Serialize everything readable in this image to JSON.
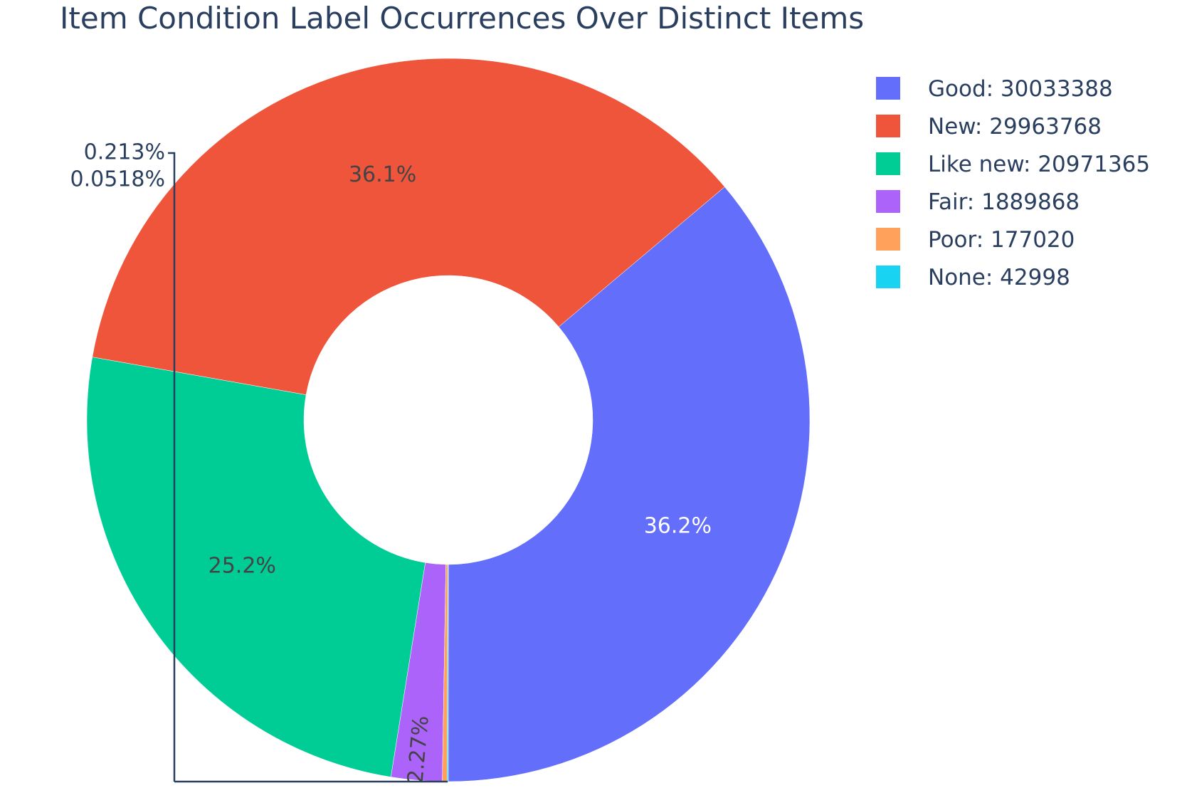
{
  "chart_data": {
    "type": "pie",
    "title": "Item Condition Label Occurrences Over Distinct Items",
    "hole": true,
    "legend_position": "top-right",
    "slices": [
      {
        "label": "Good",
        "value": 30033388,
        "percent_label": "36.2%",
        "color": "#636efa",
        "text_color": "#ffffff",
        "legend": "Good: 30033388"
      },
      {
        "label": "New",
        "value": 29963768,
        "percent_label": "36.1%",
        "color": "#ef553b",
        "text_color": "#444444",
        "legend": "New: 29963768"
      },
      {
        "label": "Like new",
        "value": 20971365,
        "percent_label": "25.2%",
        "color": "#00cc96",
        "text_color": "#444444",
        "legend": "Like new: 20971365"
      },
      {
        "label": "Fair",
        "value": 1889868,
        "percent_label": "2.27%",
        "color": "#ab63fa",
        "text_color": "#444444",
        "legend": "Fair: 1889868"
      },
      {
        "label": "Poor",
        "value": 177020,
        "percent_label": "0.213%",
        "color": "#ffa15a",
        "text_color": "#2a3f5f",
        "legend": "Poor: 177020"
      },
      {
        "label": "None",
        "value": 42998,
        "percent_label": "0.0518%",
        "color": "#19d3f3",
        "text_color": "#2a3f5f",
        "legend": "None: 42998"
      }
    ]
  }
}
